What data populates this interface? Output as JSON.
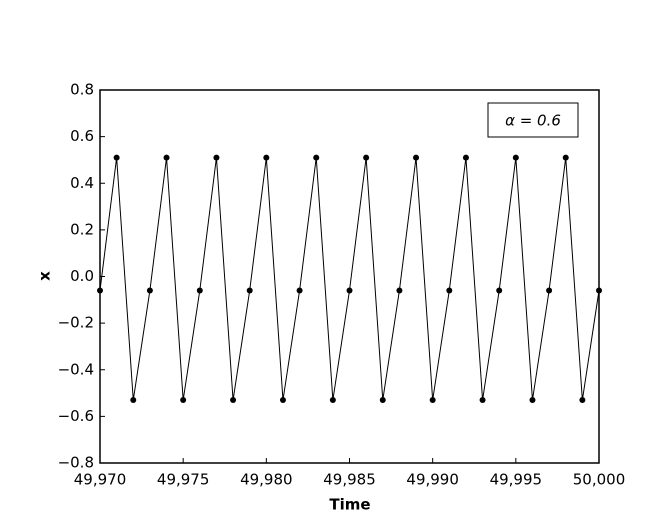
{
  "chart_data": {
    "type": "line",
    "xlabel": "Time",
    "ylabel": "x",
    "annotation": "α = 0.6",
    "x": [
      49970,
      49971,
      49972,
      49973,
      49974,
      49975,
      49976,
      49977,
      49978,
      49979,
      49980,
      49981,
      49982,
      49983,
      49984,
      49985,
      49986,
      49987,
      49988,
      49989,
      49990,
      49991,
      49992,
      49993,
      49994,
      49995,
      49996,
      49997,
      49998,
      49999,
      50000
    ],
    "series": [
      {
        "color": "#000000",
        "values": [
          -0.06,
          0.51,
          -0.53,
          -0.06,
          0.51,
          -0.53,
          -0.06,
          0.51,
          -0.53,
          -0.06,
          0.51,
          -0.53,
          -0.06,
          0.51,
          -0.53,
          -0.06,
          0.51,
          -0.53,
          -0.06,
          0.51,
          -0.53,
          -0.06,
          0.51,
          -0.53,
          -0.06,
          0.51,
          -0.53,
          -0.06,
          0.51,
          -0.53,
          -0.06
        ]
      }
    ],
    "xlim": [
      49970,
      50000
    ],
    "xticks": [
      {
        "value": 49970,
        "label": "49,970"
      },
      {
        "value": 49975,
        "label": "49,975"
      },
      {
        "value": 49980,
        "label": "49,980"
      },
      {
        "value": 49985,
        "label": "49,985"
      },
      {
        "value": 49990,
        "label": "49,990"
      },
      {
        "value": 49995,
        "label": "49,995"
      },
      {
        "value": 50000,
        "label": "50,000"
      }
    ],
    "ylim": [
      -0.8,
      0.8
    ],
    "yticks": [
      {
        "value": -0.8,
        "label": "−0.8"
      },
      {
        "value": -0.6,
        "label": "−0.6"
      },
      {
        "value": -0.4,
        "label": "−0.4"
      },
      {
        "value": -0.2,
        "label": "−0.2"
      },
      {
        "value": 0,
        "label": "0.0"
      },
      0.2,
      0.4,
      0.6,
      0.8
    ]
  }
}
